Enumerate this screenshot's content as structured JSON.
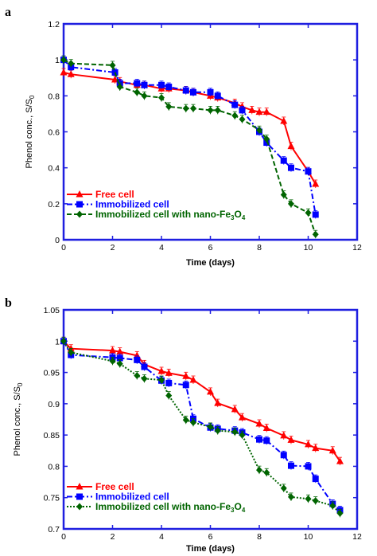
{
  "chart_data": [
    {
      "panel_label": "a",
      "type": "line",
      "xlabel": "Time (days)",
      "ylabel": "Phenol conc., S/S",
      "ylabel_sub": "0",
      "xlim": [
        0,
        12
      ],
      "ylim": [
        0,
        1.2
      ],
      "xticks": [
        "0",
        "2",
        "4",
        "6",
        "8",
        "10",
        "12"
      ],
      "yticks": [
        "0",
        "0.2",
        "0.4",
        "0.6",
        "0.8",
        "1",
        "1.2"
      ],
      "grid": false,
      "legend_position": "bottom-left",
      "series": [
        {
          "name": "Free cell",
          "color": "#ff0000",
          "marker": "triangle",
          "line": "solid",
          "x": [
            0,
            0.3,
            2.1,
            2.3,
            3.0,
            3.3,
            4.0,
            4.3,
            5.0,
            5.3,
            6.0,
            6.3,
            7.0,
            7.3,
            7.7,
            8.0,
            8.3,
            9.0,
            9.3,
            10.0,
            10.3
          ],
          "y": [
            0.93,
            0.92,
            0.89,
            0.88,
            0.86,
            0.86,
            0.84,
            0.84,
            0.83,
            0.82,
            0.8,
            0.79,
            0.76,
            0.74,
            0.72,
            0.71,
            0.71,
            0.66,
            0.52,
            0.38,
            0.31
          ]
        },
        {
          "name": "Immobilized cell",
          "color": "#0000ff",
          "marker": "square",
          "line": "dashdot",
          "x": [
            0,
            0.3,
            2.1,
            2.3,
            3.0,
            3.3,
            4.0,
            4.3,
            5.0,
            5.3,
            6.0,
            6.3,
            7.0,
            7.3,
            8.0,
            8.3,
            9.0,
            9.3,
            10.0,
            10.3
          ],
          "y": [
            1.0,
            0.96,
            0.93,
            0.87,
            0.87,
            0.86,
            0.86,
            0.85,
            0.83,
            0.82,
            0.82,
            0.8,
            0.75,
            0.72,
            0.6,
            0.54,
            0.44,
            0.4,
            0.38,
            0.14
          ]
        },
        {
          "name": "Immobilized cell with nano-Fe",
          "name_sub": "3",
          "name_end": "O",
          "name_sub2": "4",
          "color": "#006400",
          "marker": "diamond",
          "line": "dashed",
          "x": [
            0,
            0.3,
            2.0,
            2.3,
            3.0,
            3.3,
            4.0,
            4.3,
            5.0,
            5.3,
            6.0,
            6.3,
            7.0,
            7.3,
            8.0,
            8.3,
            9.0,
            9.3,
            10.0,
            10.3
          ],
          "y": [
            1.0,
            0.98,
            0.97,
            0.85,
            0.82,
            0.8,
            0.79,
            0.74,
            0.73,
            0.73,
            0.72,
            0.72,
            0.69,
            0.67,
            0.61,
            0.56,
            0.25,
            0.2,
            0.15,
            0.03
          ]
        }
      ]
    },
    {
      "panel_label": "b",
      "type": "line",
      "xlabel": "Time (days)",
      "ylabel": "Phenol conc., S/S",
      "ylabel_sub": "0",
      "xlim": [
        0,
        12
      ],
      "ylim": [
        0.7,
        1.05
      ],
      "xticks": [
        "0",
        "2",
        "4",
        "6",
        "8",
        "10",
        "12"
      ],
      "yticks": [
        "0.7",
        "0.75",
        "0.8",
        "0.85",
        "0.9",
        "0.95",
        "1",
        "1.05"
      ],
      "grid": false,
      "legend_position": "bottom-left",
      "series": [
        {
          "name": "Free cell",
          "color": "#ff0000",
          "marker": "triangle",
          "line": "solid",
          "x": [
            0,
            0.3,
            2.0,
            2.3,
            3.0,
            3.3,
            4.0,
            4.3,
            5.0,
            5.3,
            6.0,
            6.3,
            7.0,
            7.3,
            8.0,
            8.3,
            9.0,
            9.3,
            10.0,
            10.3,
            11.0,
            11.3
          ],
          "y": [
            1.0,
            0.988,
            0.985,
            0.983,
            0.977,
            0.963,
            0.952,
            0.949,
            0.944,
            0.938,
            0.919,
            0.901,
            0.891,
            0.878,
            0.868,
            0.861,
            0.849,
            0.842,
            0.835,
            0.829,
            0.825,
            0.808
          ]
        },
        {
          "name": "Immobilized cell",
          "color": "#0000ff",
          "marker": "square",
          "line": "dashdot",
          "x": [
            0,
            0.3,
            2.0,
            2.3,
            3.0,
            3.3,
            4.0,
            4.3,
            5.0,
            5.3,
            6.0,
            6.3,
            7.0,
            7.3,
            8.0,
            8.3,
            9.0,
            9.3,
            10.0,
            10.3,
            11.0,
            11.3
          ],
          "y": [
            1.0,
            0.978,
            0.974,
            0.973,
            0.97,
            0.959,
            0.937,
            0.933,
            0.93,
            0.876,
            0.862,
            0.86,
            0.857,
            0.854,
            0.843,
            0.841,
            0.818,
            0.801,
            0.8,
            0.78,
            0.74,
            0.73
          ]
        },
        {
          "name": "Immobilized cell with nano-Fe",
          "name_sub": "3",
          "name_end": "O",
          "name_sub2": "4",
          "color": "#006400",
          "marker": "diamond",
          "line": "dotted",
          "x": [
            0,
            0.3,
            2.0,
            2.3,
            3.0,
            3.3,
            4.0,
            4.3,
            5.0,
            5.3,
            6.0,
            6.3,
            7.0,
            7.3,
            8.0,
            8.3,
            9.0,
            9.3,
            10.0,
            10.3,
            11.0,
            11.3
          ],
          "y": [
            1.0,
            0.982,
            0.968,
            0.964,
            0.945,
            0.94,
            0.938,
            0.913,
            0.874,
            0.87,
            0.863,
            0.857,
            0.855,
            0.85,
            0.794,
            0.79,
            0.765,
            0.751,
            0.748,
            0.745,
            0.737,
            0.725
          ]
        }
      ]
    }
  ]
}
